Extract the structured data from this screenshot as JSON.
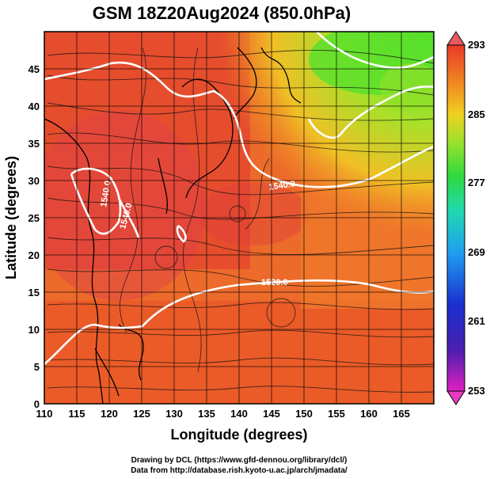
{
  "title": "GSM 18Z20Aug2024 (850.0hPa)",
  "xlabel": "Longitude (degrees)",
  "ylabel": "Latitude (degrees)",
  "credit_line1": "Drawing by DCL (https://www.gfd-dennou.org/library/dcl/)",
  "credit_line2": "Data from http://database.rish.kyoto-u.ac.jp/arch/jmadata/",
  "x_ticks": [
    "110",
    "115",
    "120",
    "125",
    "130",
    "135",
    "140",
    "145",
    "150",
    "155",
    "160",
    "165"
  ],
  "y_ticks": [
    "0",
    "5",
    "10",
    "15",
    "20",
    "25",
    "30",
    "35",
    "40",
    "45"
  ],
  "colorbar_labels": [
    "293",
    "285",
    "277",
    "269",
    "261",
    "253"
  ],
  "contour_labels": [
    "1540.0",
    "1520.0",
    "1540.0",
    "1540.0"
  ],
  "colors": {
    "warm": "#e8552a",
    "hot": "#e23a2e",
    "orange": "#f07a22",
    "yellow": "#e8c825",
    "green": "#78e02a",
    "contour": "#ffffff"
  },
  "chart_data": {
    "type": "heatmap",
    "variable": "temperature (K) with streamlines and geopotential height contours",
    "xlim": [
      110,
      170
    ],
    "ylim": [
      0,
      50
    ],
    "colorbar_range": [
      253,
      293
    ],
    "colorbar_ticks": [
      293,
      285,
      277,
      269,
      261,
      253
    ],
    "contours": [
      {
        "label": "1540.0",
        "lon": 141.5,
        "lat": 32.5
      },
      {
        "label": "1520.0",
        "lon": 144.5,
        "lat": 16.2
      },
      {
        "label": "1540.0",
        "lon": 120.0,
        "lat": 28.0
      },
      {
        "label": "1540.0",
        "lon": 124.5,
        "lat": 27.0
      }
    ]
  }
}
